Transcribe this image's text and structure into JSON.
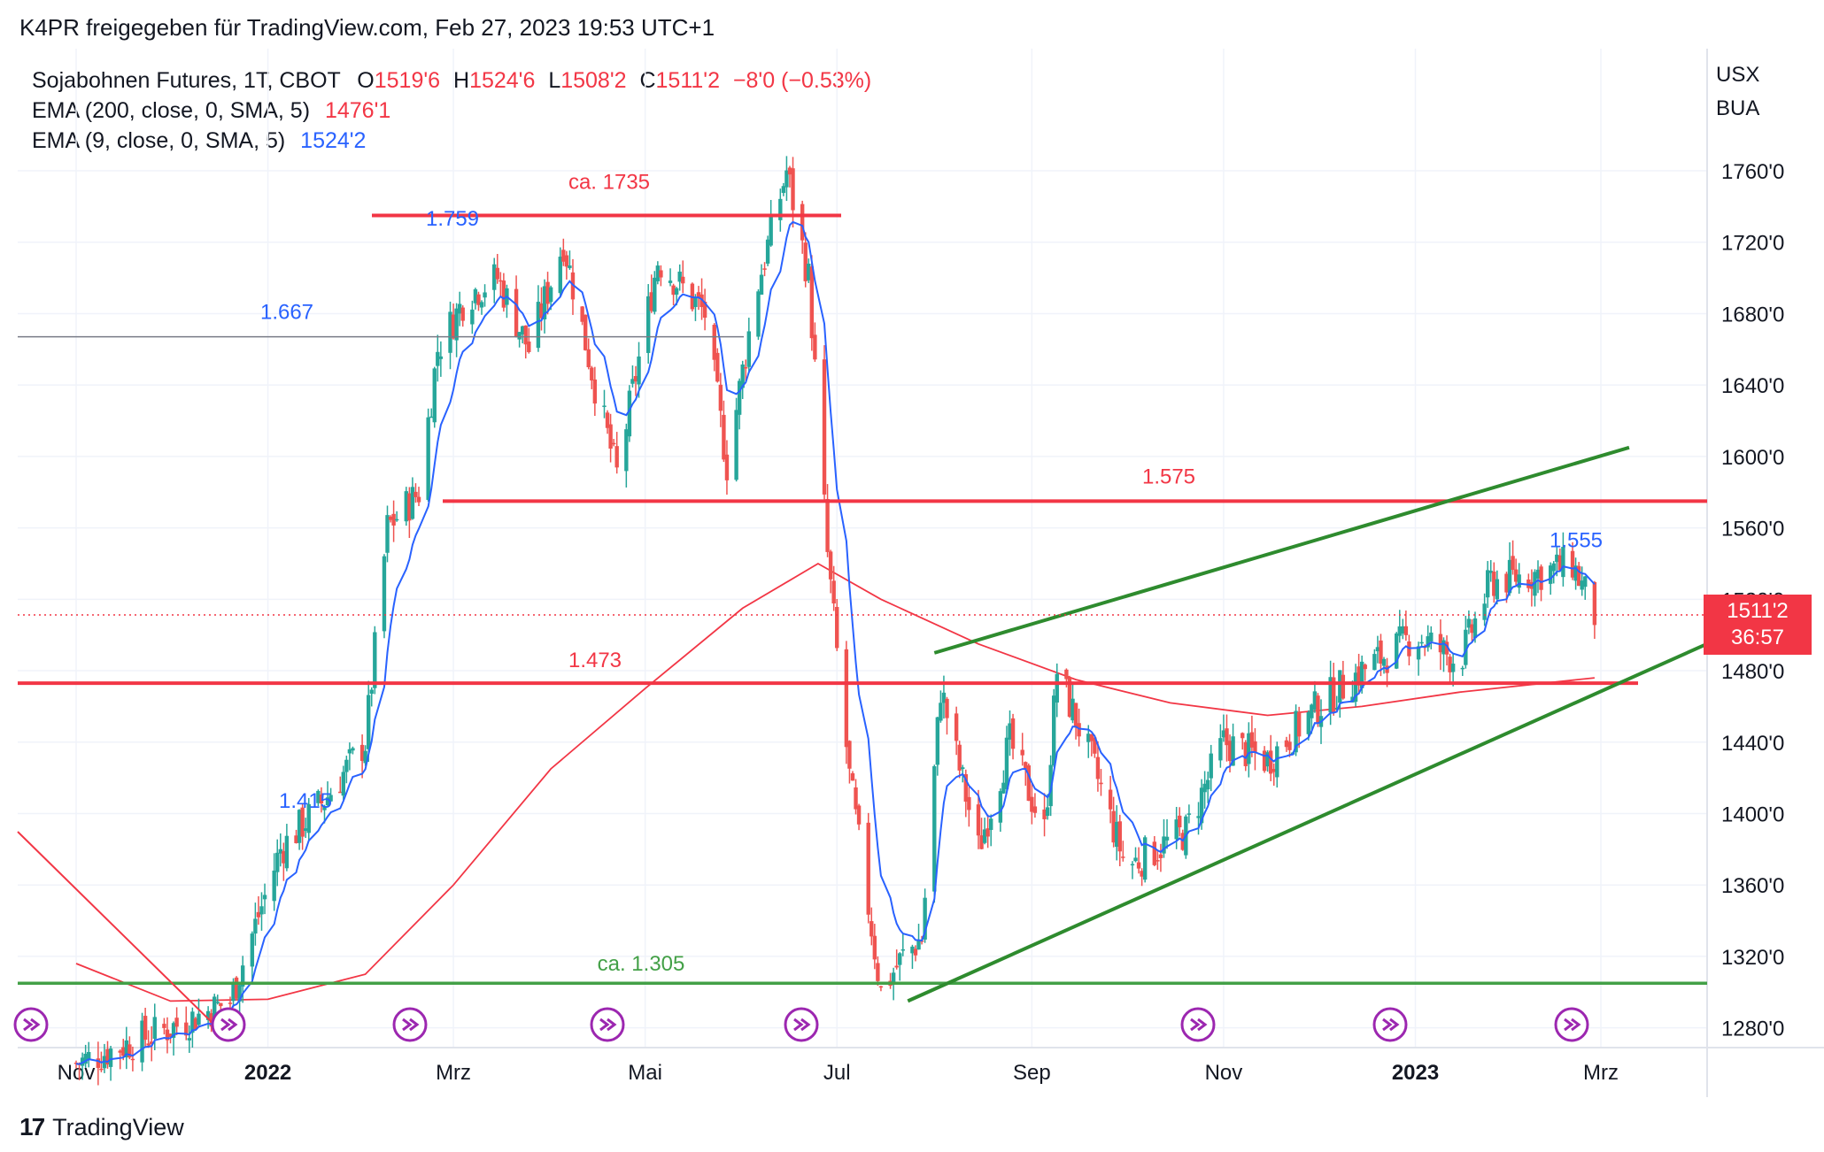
{
  "header": {
    "text": "K4PR freigegeben für TradingView.com, Feb 27, 2023 19:53 UTC+1"
  },
  "legend": {
    "symbol": "Sojabohnen Futures, 1T, CBOT",
    "o_label": "O",
    "o_value": "1519'6",
    "h_label": "H",
    "h_value": "1524'6",
    "l_label": "L",
    "l_value": "1508'2",
    "c_label": "C",
    "c_value": "1511'2",
    "change": "−8'0 (−0.53%)",
    "ema200_label": "EMA (200, close, 0, SMA, 5)",
    "ema200_value": "1476'1",
    "ema9_label": "EMA (9, close, 0, SMA, 5)",
    "ema9_value": "1524'2"
  },
  "currency": {
    "line1": "USX",
    "line2": "BUA"
  },
  "price_badge": {
    "price": "1511'2",
    "countdown": "36:57"
  },
  "footer": {
    "logo": "17",
    "brand": "TradingView"
  },
  "colors": {
    "up": "#26a69a",
    "down": "#ef5350",
    "ema9": "#2962ff",
    "ema200": "#f23645",
    "annotation_red": "#f23645",
    "annotation_green": "#2e8b2e"
  },
  "chart_data": {
    "type": "candlestick",
    "title": "Sojabohnen Futures, 1T, CBOT",
    "y_axis": {
      "range": [
        1270,
        1800
      ],
      "ticks": [
        "1760'0",
        "1720'0",
        "1680'0",
        "1640'0",
        "1600'0",
        "1560'0",
        "1520'0",
        "1480'0",
        "1440'0",
        "1400'0",
        "1360'0",
        "1320'0",
        "1280'0"
      ],
      "tick_values": [
        1760,
        1720,
        1680,
        1640,
        1600,
        1560,
        1520,
        1480,
        1440,
        1400,
        1360,
        1320,
        1280
      ]
    },
    "x_axis": {
      "ticks": [
        "Nov",
        "2022",
        "Mrz",
        "Mai",
        "Jul",
        "Sep",
        "Nov",
        "2023",
        "Mrz"
      ],
      "bold": [
        false,
        true,
        false,
        false,
        false,
        false,
        false,
        true,
        false
      ]
    },
    "price_path": [
      [
        "2021-11-01",
        1260
      ],
      [
        "2021-12-01",
        1280
      ],
      [
        "2021-12-20",
        1295
      ],
      [
        "2022-01-05",
        1380
      ],
      [
        "2022-01-20",
        1410
      ],
      [
        "2022-02-01",
        1440
      ],
      [
        "2022-02-08",
        1560
      ],
      [
        "2022-02-18",
        1580
      ],
      [
        "2022-02-24",
        1660
      ],
      [
        "2022-03-05",
        1690
      ],
      [
        "2022-03-15",
        1700
      ],
      [
        "2022-03-25",
        1660
      ],
      [
        "2022-04-05",
        1720
      ],
      [
        "2022-04-15",
        1640
      ],
      [
        "2022-04-22",
        1590
      ],
      [
        "2022-05-05",
        1710
      ],
      [
        "2022-05-20",
        1680
      ],
      [
        "2022-05-27",
        1595
      ],
      [
        "2022-06-05",
        1690
      ],
      [
        "2022-06-15",
        1760
      ],
      [
        "2022-06-22",
        1700
      ],
      [
        "2022-06-28",
        1545
      ],
      [
        "2022-07-01",
        1490
      ],
      [
        "2022-07-05",
        1420
      ],
      [
        "2022-07-15",
        1300
      ],
      [
        "2022-07-22",
        1320
      ],
      [
        "2022-07-28",
        1330
      ],
      [
        "2022-08-03",
        1470
      ],
      [
        "2022-08-15",
        1380
      ],
      [
        "2022-08-25",
        1440
      ],
      [
        "2022-09-05",
        1390
      ],
      [
        "2022-09-09",
        1480
      ],
      [
        "2022-09-20",
        1430
      ],
      [
        "2022-10-01",
        1370
      ],
      [
        "2022-10-20",
        1390
      ],
      [
        "2022-11-01",
        1440
      ],
      [
        "2022-11-15",
        1430
      ],
      [
        "2022-12-01",
        1460
      ],
      [
        "2022-12-15",
        1480
      ],
      [
        "2023-01-01",
        1500
      ],
      [
        "2023-01-15",
        1485
      ],
      [
        "2023-01-25",
        1530
      ],
      [
        "2023-02-10",
        1535
      ],
      [
        "2023-02-20",
        1540
      ],
      [
        "2023-02-27",
        1511
      ]
    ],
    "ema200_path": [
      [
        "2021-11-01",
        1316
      ],
      [
        "2021-12-01",
        1295
      ],
      [
        "2022-01-01",
        1296
      ],
      [
        "2022-02-01",
        1310
      ],
      [
        "2022-03-01",
        1360
      ],
      [
        "2022-04-01",
        1425
      ],
      [
        "2022-05-01",
        1470
      ],
      [
        "2022-06-01",
        1515
      ],
      [
        "2022-06-25",
        1540
      ],
      [
        "2022-07-15",
        1520
      ],
      [
        "2022-08-15",
        1495
      ],
      [
        "2022-09-15",
        1475
      ],
      [
        "2022-10-15",
        1462
      ],
      [
        "2022-11-15",
        1455
      ],
      [
        "2022-12-15",
        1460
      ],
      [
        "2023-01-15",
        1468
      ],
      [
        "2023-02-27",
        1476
      ]
    ],
    "ema9_value": 1524.25,
    "annotations": [
      {
        "type": "hline",
        "label": "ca. 1735",
        "value": 1735
      },
      {
        "type": "hline",
        "label": "1.575",
        "value": 1575
      },
      {
        "type": "hline",
        "label": "1.473",
        "value": 1473
      },
      {
        "type": "hline",
        "label": "ca. 1.305",
        "value": 1305
      },
      {
        "type": "hline",
        "label": "1.667",
        "value": 1667
      },
      {
        "type": "label",
        "label": "1.759",
        "value": 1759
      },
      {
        "type": "label",
        "label": "1.415",
        "value": 1415
      },
      {
        "type": "label",
        "label": "1.555",
        "value": 1555
      }
    ],
    "wedge": {
      "upper": [
        [
          "2022-08-01",
          1490
        ],
        [
          "2023-03-10",
          1605
        ]
      ],
      "lower": [
        [
          "2022-08-01",
          1295
        ],
        [
          "2023-03-10",
          1500
        ]
      ]
    },
    "last_price": 1511.25
  }
}
